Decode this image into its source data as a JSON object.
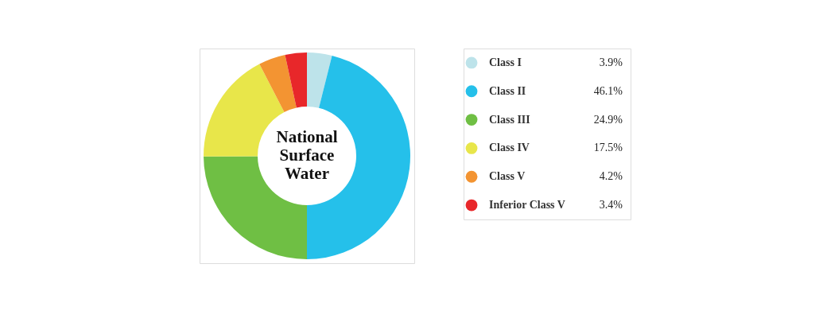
{
  "chart_data": {
    "type": "donut",
    "title": "National Surface Water",
    "categories": [
      "Class I",
      "Class II",
      "Class III",
      "Class IV",
      "Class V",
      "Inferior Class V"
    ],
    "values": [
      3.9,
      46.1,
      24.9,
      17.5,
      4.2,
      3.4
    ],
    "value_labels": [
      "3.9%",
      "46.1%",
      "24.9%",
      "17.5%",
      "4.2%",
      "3.4%"
    ],
    "colors": [
      "#bde3ea",
      "#25c0ea",
      "#6fbf44",
      "#e8e64a",
      "#f39432",
      "#e8272a"
    ],
    "legend": "right"
  }
}
